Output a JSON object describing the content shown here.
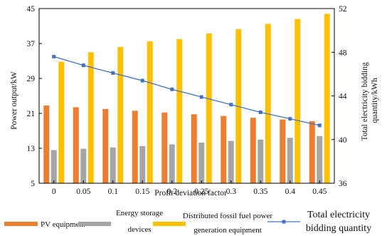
{
  "chart_data": {
    "type": "bar",
    "xlabel": "Profit deviation factor",
    "ylabel_left": "Power output/kW",
    "ylabel_right": [
      "Total electricity bidding",
      "quantity/kWh"
    ],
    "categories": [
      "0",
      "0.05",
      "0.1",
      "0.15",
      "0.2",
      "0.25",
      "0.3",
      "0.35",
      "0.4",
      "0.45"
    ],
    "ylim_left": [
      5,
      45
    ],
    "yticks_left": [
      5,
      13,
      21,
      29,
      37,
      45
    ],
    "ylim_right": [
      36,
      52
    ],
    "yticks_right": [
      36,
      40,
      44,
      48,
      52
    ],
    "series": [
      {
        "name": "PV equipment",
        "axis": "left",
        "kind": "bar",
        "color": "#ED7D31",
        "values": [
          22.8,
          22.4,
          22.0,
          21.6,
          21.2,
          20.8,
          20.4,
          20.0,
          19.6,
          19.2
        ]
      },
      {
        "name": "Energy storage devices",
        "axis": "left",
        "kind": "bar",
        "color": "#A5A5A5",
        "values": [
          12.6,
          12.9,
          13.2,
          13.5,
          13.9,
          14.3,
          14.7,
          15.0,
          15.4,
          15.8
        ]
      },
      {
        "name": "Distributed fossil fuel power generation equipment",
        "axis": "left",
        "kind": "bar",
        "color": "#FFC000",
        "values": [
          32.8,
          35.0,
          36.2,
          37.5,
          38.0,
          39.3,
          40.3,
          41.5,
          42.6,
          43.8
        ]
      },
      {
        "name": "Total electricity bidding quantity",
        "axis": "right",
        "kind": "line",
        "color": "#4472C4",
        "values": [
          47.6,
          46.8,
          46.1,
          45.4,
          44.6,
          43.9,
          43.2,
          42.5,
          41.9,
          41.3
        ]
      }
    ],
    "legend": {
      "position": "bottom",
      "pv": "PV equipment",
      "storage": [
        "Energy storage",
        "devices"
      ],
      "fossil": [
        "Distributed fossil fuel power",
        "generation equipment"
      ],
      "total": [
        "Total electricity",
        "bidding quantity"
      ]
    },
    "grid": false
  }
}
